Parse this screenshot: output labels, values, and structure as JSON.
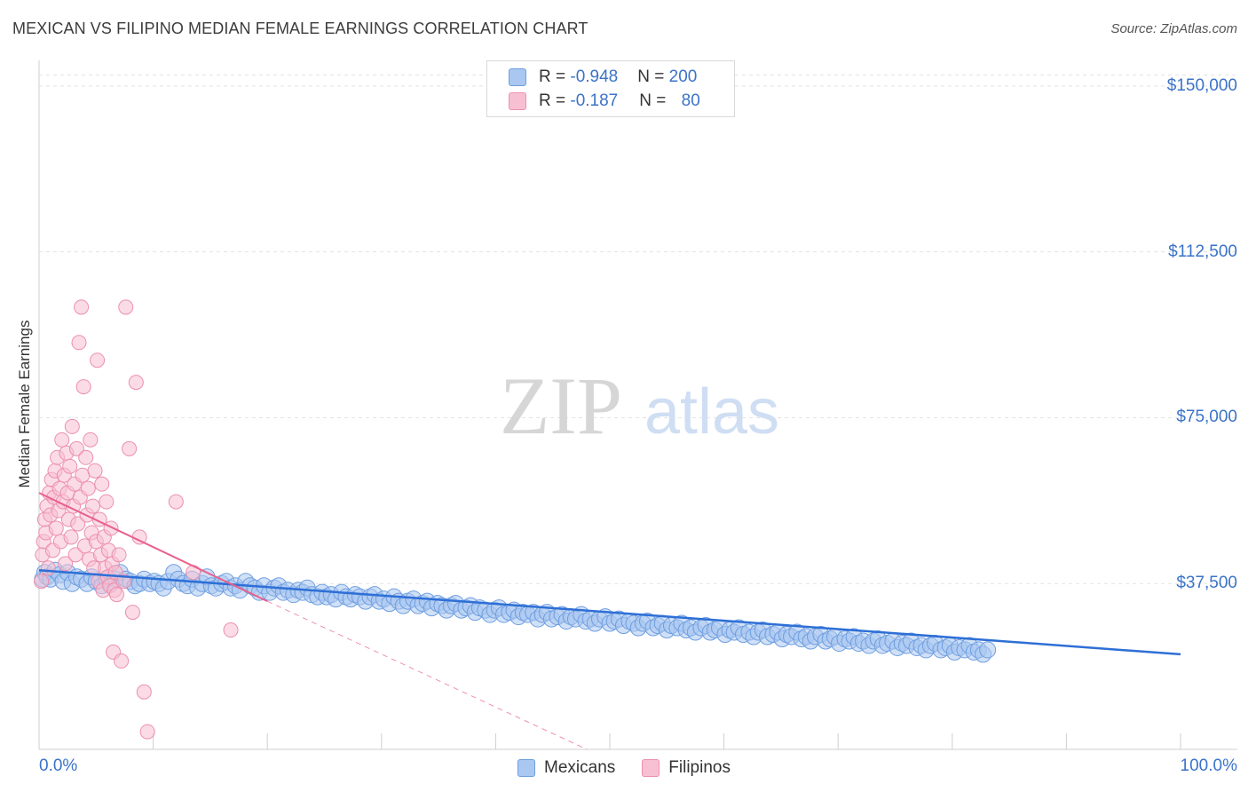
{
  "title": "MEXICAN VS FILIPINO MEDIAN FEMALE EARNINGS CORRELATION CHART",
  "source": "Source: ZipAtlas.com",
  "watermark": {
    "zip": "ZIP",
    "atlas": "atlas"
  },
  "legend": {
    "rows": [
      {
        "r_label": "R = ",
        "r_value": "-0.948",
        "n_label": "N = ",
        "n_value": "200"
      },
      {
        "r_label": "R = ",
        "r_value": "-0.187",
        "n_label": "N = ",
        "n_value": "80"
      }
    ]
  },
  "colors": {
    "mexicans_fill": "#a9c7f0",
    "mexicans_stroke": "#6f9fe0",
    "mexicans_line": "#2e6fd6",
    "filipinos_fill": "#f7c0d2",
    "filipinos_stroke": "#ec8fae",
    "filipinos_line": "#e8608c",
    "axis_text": "#3b73c8",
    "grid": "#e3e3e3"
  },
  "chart_data": {
    "type": "scatter",
    "title": "MEXICAN VS FILIPINO MEDIAN FEMALE EARNINGS CORRELATION CHART",
    "xlabel": "",
    "ylabel": "Median Female Earnings",
    "xlim": [
      0,
      100
    ],
    "ylim": [
      0,
      155000
    ],
    "x_tick_labels": [
      "0.0%",
      "100.0%"
    ],
    "y_ticks": [
      {
        "value": 37500,
        "label": "$37,500"
      },
      {
        "value": 75000,
        "label": "$75,000"
      },
      {
        "value": 112500,
        "label": "$112,500"
      },
      {
        "value": 150000,
        "label": "$150,000"
      }
    ],
    "grid": true,
    "legend_position": "top-center",
    "series": [
      {
        "name": "Mexicans",
        "R": -0.948,
        "N": 200,
        "trend": {
          "x": [
            0,
            100
          ],
          "y": [
            40500,
            21500
          ]
        },
        "points": [
          [
            0.3,
            38500
          ],
          [
            0.5,
            40000
          ],
          [
            0.7,
            39000
          ],
          [
            1.0,
            38500
          ],
          [
            1.4,
            40500
          ],
          [
            1.8,
            39500
          ],
          [
            2.1,
            38000
          ],
          [
            2.5,
            40000
          ],
          [
            2.9,
            37500
          ],
          [
            3.3,
            39000
          ],
          [
            3.7,
            38500
          ],
          [
            4.2,
            37500
          ],
          [
            4.6,
            39000
          ],
          [
            5.0,
            38000
          ],
          [
            5.5,
            37000
          ],
          [
            5.9,
            38500
          ],
          [
            6.3,
            37500
          ],
          [
            6.7,
            38500
          ],
          [
            7.1,
            40000
          ],
          [
            7.6,
            38500
          ],
          [
            8.0,
            38000
          ],
          [
            8.4,
            37000
          ],
          [
            8.8,
            37500
          ],
          [
            9.2,
            38500
          ],
          [
            9.7,
            37500
          ],
          [
            10.1,
            38000
          ],
          [
            10.5,
            37500
          ],
          [
            10.9,
            36500
          ],
          [
            11.3,
            38000
          ],
          [
            11.8,
            40000
          ],
          [
            12.2,
            38500
          ],
          [
            12.6,
            37500
          ],
          [
            13.0,
            37000
          ],
          [
            13.4,
            38500
          ],
          [
            13.9,
            36500
          ],
          [
            14.3,
            37500
          ],
          [
            14.7,
            39000
          ],
          [
            15.1,
            37000
          ],
          [
            15.5,
            36500
          ],
          [
            16.0,
            37500
          ],
          [
            16.4,
            38000
          ],
          [
            16.8,
            36500
          ],
          [
            17.2,
            37000
          ],
          [
            17.6,
            36000
          ],
          [
            18.1,
            38000
          ],
          [
            18.5,
            37000
          ],
          [
            18.9,
            36500
          ],
          [
            19.3,
            35500
          ],
          [
            19.7,
            37000
          ],
          [
            20.2,
            35500
          ],
          [
            20.6,
            36500
          ],
          [
            21.0,
            37000
          ],
          [
            21.4,
            35500
          ],
          [
            21.8,
            36000
          ],
          [
            22.3,
            35000
          ],
          [
            22.7,
            36000
          ],
          [
            23.1,
            35500
          ],
          [
            23.5,
            36500
          ],
          [
            23.9,
            35000
          ],
          [
            24.4,
            34500
          ],
          [
            24.8,
            35500
          ],
          [
            25.2,
            34500
          ],
          [
            25.6,
            35000
          ],
          [
            26.0,
            34000
          ],
          [
            26.5,
            35500
          ],
          [
            26.9,
            34500
          ],
          [
            27.3,
            34000
          ],
          [
            27.7,
            35000
          ],
          [
            28.1,
            34500
          ],
          [
            28.6,
            33500
          ],
          [
            29.0,
            34500
          ],
          [
            29.4,
            35000
          ],
          [
            29.8,
            33500
          ],
          [
            30.2,
            34000
          ],
          [
            30.7,
            33000
          ],
          [
            31.1,
            34500
          ],
          [
            31.5,
            33500
          ],
          [
            31.9,
            32500
          ],
          [
            32.3,
            33500
          ],
          [
            32.8,
            34000
          ],
          [
            33.2,
            32500
          ],
          [
            33.6,
            33000
          ],
          [
            34.0,
            33500
          ],
          [
            34.4,
            32000
          ],
          [
            34.9,
            33000
          ],
          [
            35.3,
            32500
          ],
          [
            35.7,
            31500
          ],
          [
            36.1,
            32500
          ],
          [
            36.5,
            33000
          ],
          [
            37.0,
            31500
          ],
          [
            37.4,
            32000
          ],
          [
            37.8,
            32500
          ],
          [
            38.2,
            31000
          ],
          [
            38.6,
            32000
          ],
          [
            39.1,
            31500
          ],
          [
            39.5,
            30500
          ],
          [
            39.9,
            31500
          ],
          [
            40.3,
            32000
          ],
          [
            40.7,
            30500
          ],
          [
            41.2,
            31000
          ],
          [
            41.6,
            31500
          ],
          [
            42.0,
            30000
          ],
          [
            42.4,
            31000
          ],
          [
            42.8,
            30500
          ],
          [
            43.3,
            31000
          ],
          [
            43.7,
            29500
          ],
          [
            44.1,
            30500
          ],
          [
            44.5,
            31000
          ],
          [
            44.9,
            29500
          ],
          [
            45.4,
            30000
          ],
          [
            45.8,
            30500
          ],
          [
            46.2,
            29000
          ],
          [
            46.6,
            30000
          ],
          [
            47.0,
            29500
          ],
          [
            47.5,
            30500
          ],
          [
            47.9,
            29000
          ],
          [
            48.3,
            29500
          ],
          [
            48.7,
            28500
          ],
          [
            49.1,
            29500
          ],
          [
            49.6,
            30000
          ],
          [
            50.0,
            28500
          ],
          [
            50.4,
            29000
          ],
          [
            50.8,
            29500
          ],
          [
            51.2,
            28000
          ],
          [
            51.7,
            29000
          ],
          [
            52.1,
            28500
          ],
          [
            52.5,
            27500
          ],
          [
            52.9,
            28500
          ],
          [
            53.3,
            29000
          ],
          [
            53.8,
            27500
          ],
          [
            54.2,
            28000
          ],
          [
            54.6,
            28500
          ],
          [
            55.0,
            27000
          ],
          [
            55.4,
            28000
          ],
          [
            55.9,
            27500
          ],
          [
            56.3,
            28500
          ],
          [
            56.7,
            27000
          ],
          [
            57.1,
            27500
          ],
          [
            57.5,
            26500
          ],
          [
            58.0,
            27500
          ],
          [
            58.4,
            28000
          ],
          [
            58.8,
            26500
          ],
          [
            59.2,
            27000
          ],
          [
            59.6,
            27500
          ],
          [
            60.1,
            26000
          ],
          [
            60.5,
            27000
          ],
          [
            60.9,
            26500
          ],
          [
            61.3,
            27500
          ],
          [
            61.7,
            26000
          ],
          [
            62.2,
            26500
          ],
          [
            62.6,
            25500
          ],
          [
            63.0,
            26500
          ],
          [
            63.4,
            27000
          ],
          [
            63.8,
            25500
          ],
          [
            64.3,
            26000
          ],
          [
            64.7,
            26500
          ],
          [
            65.1,
            25000
          ],
          [
            65.5,
            26000
          ],
          [
            65.9,
            25500
          ],
          [
            66.4,
            26500
          ],
          [
            66.8,
            25000
          ],
          [
            67.2,
            25500
          ],
          [
            67.6,
            24500
          ],
          [
            68.0,
            25500
          ],
          [
            68.5,
            26000
          ],
          [
            68.9,
            24500
          ],
          [
            69.3,
            25000
          ],
          [
            69.7,
            25500
          ],
          [
            70.1,
            24000
          ],
          [
            70.6,
            25000
          ],
          [
            71.0,
            24500
          ],
          [
            71.4,
            25500
          ],
          [
            71.8,
            24000
          ],
          [
            72.2,
            24500
          ],
          [
            72.7,
            23500
          ],
          [
            73.1,
            24500
          ],
          [
            73.5,
            25000
          ],
          [
            73.9,
            23500
          ],
          [
            74.3,
            24000
          ],
          [
            74.8,
            24500
          ],
          [
            75.2,
            23000
          ],
          [
            75.6,
            24000
          ],
          [
            76.0,
            23500
          ],
          [
            76.4,
            24500
          ],
          [
            76.9,
            23000
          ],
          [
            77.3,
            23500
          ],
          [
            77.7,
            22500
          ],
          [
            78.1,
            23500
          ],
          [
            78.5,
            24000
          ],
          [
            79.0,
            22500
          ],
          [
            79.4,
            23000
          ],
          [
            79.8,
            23500
          ],
          [
            80.2,
            22000
          ],
          [
            80.6,
            23000
          ],
          [
            81.1,
            22500
          ],
          [
            81.5,
            23500
          ],
          [
            81.9,
            22000
          ],
          [
            82.3,
            22500
          ],
          [
            82.7,
            21500
          ],
          [
            83.1,
            22500
          ]
        ]
      },
      {
        "name": "Filipinos",
        "R": -0.187,
        "N": 80,
        "trend": {
          "x": [
            0,
            20
          ],
          "y": [
            58000,
            33500
          ]
        },
        "trend_extension": {
          "x": [
            20,
            48
          ],
          "y": [
            33500,
            0
          ]
        },
        "points": [
          [
            0.2,
            38000
          ],
          [
            0.3,
            44000
          ],
          [
            0.4,
            47000
          ],
          [
            0.5,
            52000
          ],
          [
            0.6,
            49000
          ],
          [
            0.7,
            55000
          ],
          [
            0.8,
            41000
          ],
          [
            0.9,
            58000
          ],
          [
            1.0,
            53000
          ],
          [
            1.1,
            61000
          ],
          [
            1.2,
            45000
          ],
          [
            1.3,
            57000
          ],
          [
            1.4,
            63000
          ],
          [
            1.5,
            50000
          ],
          [
            1.6,
            66000
          ],
          [
            1.7,
            54000
          ],
          [
            1.8,
            59000
          ],
          [
            1.9,
            47000
          ],
          [
            2.0,
            70000
          ],
          [
            2.1,
            56000
          ],
          [
            2.2,
            62000
          ],
          [
            2.3,
            42000
          ],
          [
            2.4,
            67000
          ],
          [
            2.5,
            58000
          ],
          [
            2.6,
            52000
          ],
          [
            2.7,
            64000
          ],
          [
            2.8,
            48000
          ],
          [
            2.9,
            73000
          ],
          [
            3.0,
            55000
          ],
          [
            3.1,
            60000
          ],
          [
            3.2,
            44000
          ],
          [
            3.3,
            68000
          ],
          [
            3.4,
            51000
          ],
          [
            3.5,
            92000
          ],
          [
            3.6,
            57000
          ],
          [
            3.7,
            100000
          ],
          [
            3.8,
            62000
          ],
          [
            3.9,
            82000
          ],
          [
            4.0,
            46000
          ],
          [
            4.1,
            66000
          ],
          [
            4.2,
            53000
          ],
          [
            4.3,
            59000
          ],
          [
            4.4,
            43000
          ],
          [
            4.5,
            70000
          ],
          [
            4.6,
            49000
          ],
          [
            4.7,
            55000
          ],
          [
            4.8,
            41000
          ],
          [
            4.9,
            63000
          ],
          [
            5.0,
            47000
          ],
          [
            5.1,
            88000
          ],
          [
            5.2,
            38000
          ],
          [
            5.3,
            52000
          ],
          [
            5.4,
            44000
          ],
          [
            5.5,
            60000
          ],
          [
            5.6,
            36000
          ],
          [
            5.7,
            48000
          ],
          [
            5.8,
            41000
          ],
          [
            5.9,
            56000
          ],
          [
            6.0,
            39000
          ],
          [
            6.1,
            45000
          ],
          [
            6.2,
            37000
          ],
          [
            6.3,
            50000
          ],
          [
            6.4,
            42000
          ],
          [
            6.5,
            22000
          ],
          [
            6.6,
            36000
          ],
          [
            6.7,
            40000
          ],
          [
            6.8,
            35000
          ],
          [
            7.0,
            44000
          ],
          [
            7.2,
            20000
          ],
          [
            7.4,
            38000
          ],
          [
            7.6,
            100000
          ],
          [
            7.9,
            68000
          ],
          [
            8.2,
            31000
          ],
          [
            8.5,
            83000
          ],
          [
            8.8,
            48000
          ],
          [
            9.2,
            13000
          ],
          [
            9.5,
            4000
          ],
          [
            12.0,
            56000
          ],
          [
            13.5,
            40000
          ],
          [
            16.8,
            27000
          ]
        ]
      }
    ]
  }
}
